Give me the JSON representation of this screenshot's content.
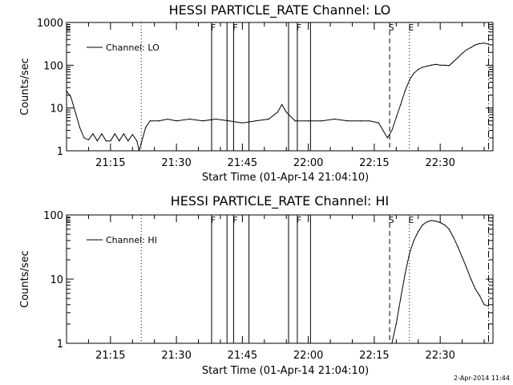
{
  "footer_stamp": "2-Apr-2014 11:44",
  "chart_data": [
    {
      "type": "line",
      "title": "HESSI PARTICLE_RATE Channel: LO",
      "xlabel": "Start Time (01-Apr-14 21:04:10)",
      "ylabel": "Counts/sec",
      "y_scale": "log",
      "ylim": [
        1,
        1000
      ],
      "xlim": [
        "21:05",
        "22:42"
      ],
      "x_ticks": [
        "21:15",
        "21:30",
        "21:45",
        "22:00",
        "22:15",
        "22:30"
      ],
      "y_ticks": [
        "1",
        "10",
        "100",
        "1000"
      ],
      "legend": "top-left",
      "series": [
        {
          "name": "Channel: LO",
          "color": "#000000",
          "points": [
            [
              "21:05",
              25
            ],
            [
              "21:06",
              18
            ],
            [
              "21:07",
              8
            ],
            [
              "21:08",
              3.5
            ],
            [
              "21:09",
              2
            ],
            [
              "21:10",
              1.8
            ],
            [
              "21:11",
              2.5
            ],
            [
              "21:12",
              1.7
            ],
            [
              "21:13",
              2.5
            ],
            [
              "21:14",
              1.7
            ],
            [
              "21:15",
              1.7
            ],
            [
              "21:16",
              2.5
            ],
            [
              "21:17",
              1.7
            ],
            [
              "21:18",
              2.5
            ],
            [
              "21:19",
              1.7
            ],
            [
              "21:20",
              2.4
            ],
            [
              "21:21",
              1.7
            ],
            [
              "21:21.5",
              1.0
            ],
            [
              "21:22",
              1.5
            ],
            [
              "21:23",
              3.5
            ],
            [
              "21:24",
              5
            ],
            [
              "21:26",
              5
            ],
            [
              "21:28",
              5.5
            ],
            [
              "21:30",
              5
            ],
            [
              "21:33",
              5.5
            ],
            [
              "21:36",
              5
            ],
            [
              "21:39",
              5.5
            ],
            [
              "21:42",
              5
            ],
            [
              "21:45",
              4.5
            ],
            [
              "21:48",
              5
            ],
            [
              "21:51",
              5.5
            ],
            [
              "21:53",
              8
            ],
            [
              "21:54",
              12
            ],
            [
              "21:55",
              8
            ],
            [
              "21:57",
              5
            ],
            [
              "22:00",
              5
            ],
            [
              "22:03",
              5
            ],
            [
              "22:06",
              5.5
            ],
            [
              "22:09",
              5
            ],
            [
              "22:12",
              5
            ],
            [
              "22:14",
              5
            ],
            [
              "22:16",
              4.5
            ],
            [
              "22:17",
              3
            ],
            [
              "22:18",
              2
            ],
            [
              "22:19",
              3
            ],
            [
              "22:20",
              6
            ],
            [
              "22:21",
              12
            ],
            [
              "22:22",
              25
            ],
            [
              "22:23",
              45
            ],
            [
              "22:24",
              65
            ],
            [
              "22:25",
              80
            ],
            [
              "22:26",
              90
            ],
            [
              "22:27",
              95
            ],
            [
              "22:28",
              100
            ],
            [
              "22:29",
              105
            ],
            [
              "22:30",
              100
            ],
            [
              "22:31",
              100
            ],
            [
              "22:32",
              98
            ],
            [
              "22:33",
              120
            ],
            [
              "22:34",
              150
            ],
            [
              "22:35",
              190
            ],
            [
              "22:36",
              230
            ],
            [
              "22:37",
              260
            ],
            [
              "22:38",
              300
            ],
            [
              "22:39",
              320
            ],
            [
              "22:40",
              330
            ],
            [
              "22:41",
              310
            ]
          ]
        }
      ],
      "markers": [
        {
          "label": "E",
          "time": "21:05",
          "style": "solid"
        },
        {
          "label": "",
          "time": "21:22",
          "style": "dotted"
        },
        {
          "label": "F",
          "time": "21:38",
          "style": "solid"
        },
        {
          "label": "",
          "time": "21:41.5",
          "style": "solid"
        },
        {
          "label": "F",
          "time": "21:43",
          "style": "solid"
        },
        {
          "label": "",
          "time": "21:46.5",
          "style": "solid"
        },
        {
          "label": "",
          "time": "21:55.5",
          "style": "solid"
        },
        {
          "label": "F",
          "time": "21:57.5",
          "style": "solid"
        },
        {
          "label": "",
          "time": "22:00.5",
          "style": "solid"
        },
        {
          "label": "S",
          "time": "22:18.5",
          "style": "dashed"
        },
        {
          "label": "E",
          "time": "22:23",
          "style": "dotted"
        },
        {
          "label": "",
          "time": "22:41",
          "style": "dashdot"
        }
      ]
    },
    {
      "type": "line",
      "title": "HESSI PARTICLE_RATE Channel: HI",
      "xlabel": "Start Time (01-Apr-14 21:04:10)",
      "ylabel": "Counts/sec",
      "y_scale": "log",
      "ylim": [
        1,
        100
      ],
      "xlim": [
        "21:05",
        "22:42"
      ],
      "x_ticks": [
        "21:15",
        "21:30",
        "21:45",
        "22:00",
        "22:15",
        "22:30"
      ],
      "y_ticks": [
        "1",
        "10",
        "100"
      ],
      "legend": "top-left",
      "series": [
        {
          "name": "Channel: HI",
          "color": "#000000",
          "points": [
            [
              "22:19",
              1.0
            ],
            [
              "22:20",
              2
            ],
            [
              "22:21",
              5
            ],
            [
              "22:22",
              12
            ],
            [
              "22:23",
              25
            ],
            [
              "22:24",
              40
            ],
            [
              "22:25",
              55
            ],
            [
              "22:26",
              70
            ],
            [
              "22:27",
              78
            ],
            [
              "22:28",
              82
            ],
            [
              "22:29",
              80
            ],
            [
              "22:30",
              76
            ],
            [
              "22:31",
              70
            ],
            [
              "22:32",
              60
            ],
            [
              "22:33",
              45
            ],
            [
              "22:34",
              32
            ],
            [
              "22:35",
              22
            ],
            [
              "22:36",
              15
            ],
            [
              "22:37",
              10
            ],
            [
              "22:38",
              7
            ],
            [
              "22:39",
              5.5
            ],
            [
              "22:40",
              4
            ],
            [
              "22:41",
              3.8
            ]
          ]
        }
      ],
      "markers": [
        {
          "label": "E",
          "time": "21:05",
          "style": "solid"
        },
        {
          "label": "",
          "time": "21:22",
          "style": "dotted"
        },
        {
          "label": "F",
          "time": "21:38",
          "style": "solid"
        },
        {
          "label": "",
          "time": "21:41.5",
          "style": "solid"
        },
        {
          "label": "F",
          "time": "21:43",
          "style": "solid"
        },
        {
          "label": "",
          "time": "21:46.5",
          "style": "solid"
        },
        {
          "label": "",
          "time": "21:55.5",
          "style": "solid"
        },
        {
          "label": "F",
          "time": "21:57.5",
          "style": "solid"
        },
        {
          "label": "",
          "time": "22:00.5",
          "style": "solid"
        },
        {
          "label": "S",
          "time": "22:18.5",
          "style": "dashed"
        },
        {
          "label": "E",
          "time": "22:23",
          "style": "dotted"
        },
        {
          "label": "",
          "time": "22:41",
          "style": "dashdot"
        }
      ]
    }
  ]
}
